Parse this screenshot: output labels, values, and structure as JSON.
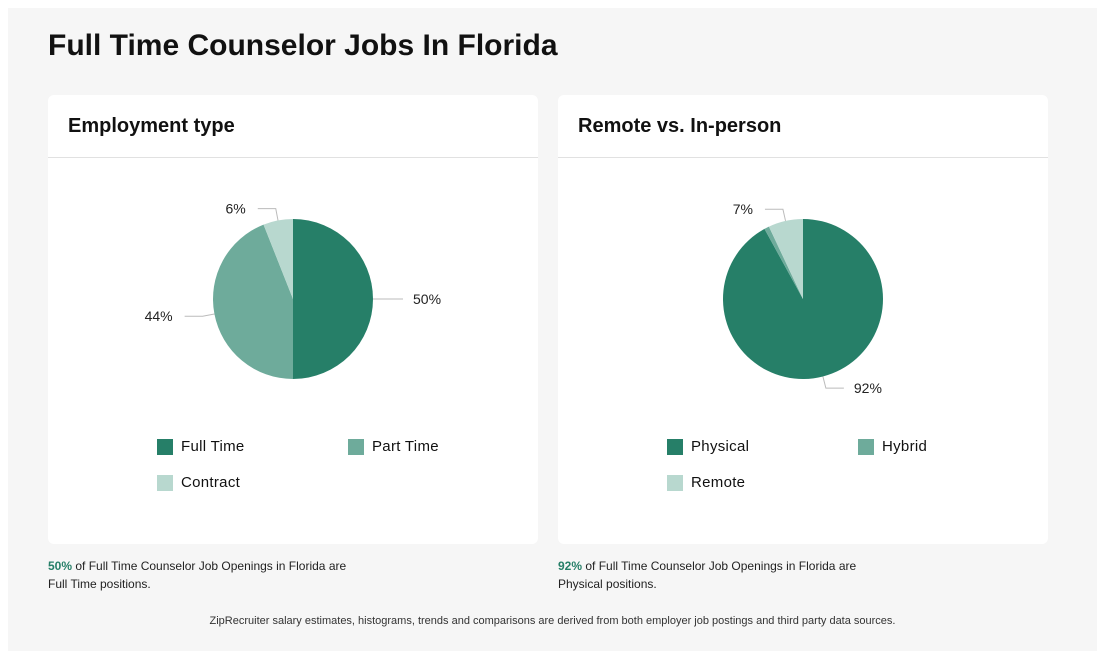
{
  "page": {
    "title": "Full Time Counselor Jobs In Florida",
    "footnote": "ZipRecruiter salary estimates, histograms, trends and comparisons are derived from both employer job postings and third party data sources."
  },
  "colors": {
    "dark": "#267f68",
    "mid": "#6eab9b",
    "light": "#b8d8cf"
  },
  "chart_data": [
    {
      "type": "pie",
      "title": "Employment type",
      "categories": [
        "Full Time",
        "Part Time",
        "Contract"
      ],
      "values": [
        50,
        44,
        6
      ],
      "labels": [
        "50%",
        "44%",
        "6%"
      ],
      "colors": [
        "#267f68",
        "#6eab9b",
        "#b8d8cf"
      ],
      "legend_position": "bottom"
    },
    {
      "type": "pie",
      "title": "Remote vs. In-person",
      "categories": [
        "Physical",
        "Hybrid",
        "Remote"
      ],
      "values": [
        92,
        1,
        7
      ],
      "labels": [
        "92%",
        "",
        "7%"
      ],
      "colors": [
        "#267f68",
        "#6eab9b",
        "#b8d8cf"
      ],
      "legend_position": "bottom"
    }
  ],
  "summaries": [
    {
      "pct": "50%",
      "text": " of Full Time Counselor Job Openings in Florida are",
      "text2": "Full Time positions."
    },
    {
      "pct": "92%",
      "text": " of Full Time Counselor Job Openings in Florida are",
      "text2": "Physical positions."
    }
  ]
}
